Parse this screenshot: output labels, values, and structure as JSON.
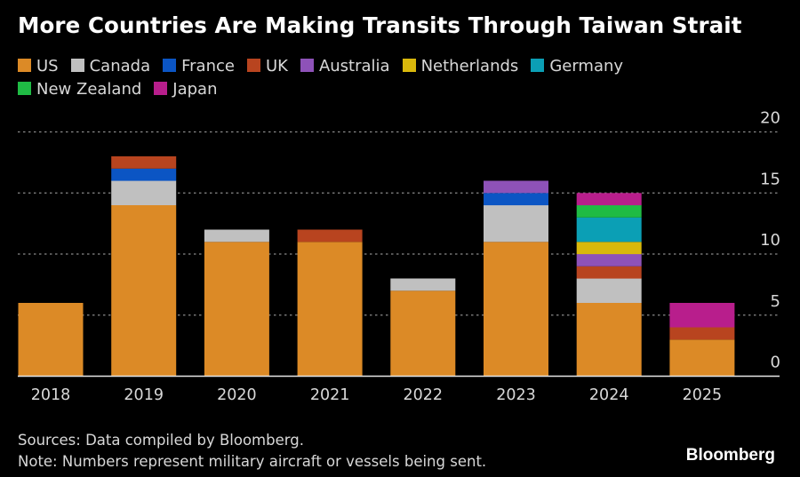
{
  "chart_data": {
    "type": "bar",
    "stacked": true,
    "title": "More Countries Are Making Transits Through Taiwan Strait",
    "xlabel": "",
    "ylabel": "",
    "ylim": [
      0,
      20
    ],
    "yticks": [
      0,
      5,
      10,
      15,
      20
    ],
    "grid": true,
    "y_axis_position": "right",
    "legend_position": "top-left",
    "categories": [
      "2018",
      "2019",
      "2020",
      "2021",
      "2022",
      "2023",
      "2024",
      "2025"
    ],
    "series": [
      {
        "name": "US",
        "color": "#dc8a26",
        "values": [
          6,
          14,
          11,
          11,
          7,
          11,
          6,
          3
        ]
      },
      {
        "name": "Canada",
        "color": "#c0c0c0",
        "values": [
          0,
          2,
          1,
          0,
          1,
          3,
          2,
          0
        ]
      },
      {
        "name": "France",
        "color": "#0b55c4",
        "values": [
          0,
          1,
          0,
          0,
          0,
          1,
          0,
          0
        ]
      },
      {
        "name": "UK",
        "color": "#b8441f",
        "values": [
          0,
          1,
          0,
          1,
          0,
          0,
          1,
          1
        ]
      },
      {
        "name": "Australia",
        "color": "#8e52b8",
        "values": [
          0,
          0,
          0,
          0,
          0,
          1,
          1,
          0
        ]
      },
      {
        "name": "Netherlands",
        "color": "#d9b80c",
        "values": [
          0,
          0,
          0,
          0,
          0,
          0,
          1,
          0
        ]
      },
      {
        "name": "Germany",
        "color": "#0b9fb5",
        "values": [
          0,
          0,
          0,
          0,
          0,
          0,
          2,
          0
        ]
      },
      {
        "name": "New Zealand",
        "color": "#1fbb44",
        "values": [
          0,
          0,
          0,
          0,
          0,
          0,
          1,
          0
        ]
      },
      {
        "name": "Japan",
        "color": "#b81e8c",
        "values": [
          0,
          0,
          0,
          0,
          0,
          0,
          1,
          2
        ]
      }
    ]
  },
  "footer": {
    "sources": "Sources: Data compiled by Bloomberg.",
    "note": "Note: Numbers represent military aircraft or vessels being sent."
  },
  "brand": "Bloomberg"
}
